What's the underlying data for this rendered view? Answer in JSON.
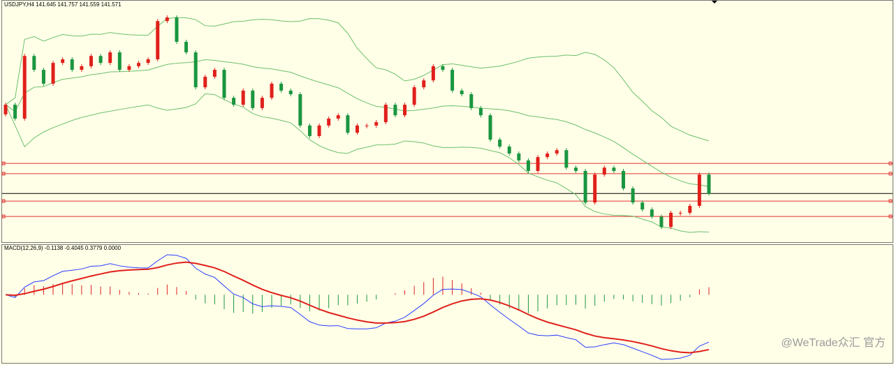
{
  "chart_data": {
    "type": "candlestick",
    "title": "USDJPY,H4  141.645 141.757 141.559 141.571",
    "macd_label": "MACD(12,26,9) -0.1138 -0.4045 0.3779 0.0000",
    "watermark": "@WeTrade众汇 官方",
    "ylim": [
      140,
      148
    ],
    "levels": [
      142.57,
      142.23,
      141.32,
      140.81
    ],
    "up_color": "#e0201b",
    "down_color": "#1a9640",
    "band_color": "#6cc06c",
    "open": [
      144.2,
      144.52,
      144.06,
      146.14,
      145.68,
      145.22,
      145.91,
      146.03,
      145.68,
      145.8,
      146.14,
      145.91,
      146.26,
      145.68,
      145.8,
      145.91,
      146.03,
      147.3,
      147.42,
      146.61,
      146.26,
      145.1,
      145.45,
      145.68,
      144.75,
      144.52,
      144.99,
      144.41,
      144.75,
      145.22,
      144.99,
      144.87,
      143.83,
      143.48,
      143.83,
      144.06,
      144.17,
      143.59,
      143.83,
      143.83,
      143.94,
      144.52,
      144.17,
      144.52,
      145.1,
      145.33,
      145.8,
      145.68,
      144.99,
      144.87,
      144.41,
      144.17,
      143.36,
      143.13,
      142.9,
      142.67,
      142.32,
      142.78,
      142.9,
      143.01,
      142.43,
      142.32,
      141.27,
      142.2,
      142.43,
      142.32,
      141.74,
      141.27,
      141.04,
      140.8,
      140.46,
      140.93,
      140.93,
      141.16,
      142.2
    ],
    "close": [
      144.52,
      144.06,
      146.14,
      145.68,
      145.22,
      145.91,
      146.03,
      145.68,
      145.8,
      146.14,
      145.91,
      146.26,
      145.68,
      145.8,
      145.91,
      146.03,
      147.3,
      147.42,
      146.61,
      146.26,
      145.1,
      145.45,
      145.68,
      144.75,
      144.52,
      144.99,
      144.41,
      144.75,
      145.22,
      144.99,
      144.87,
      143.83,
      143.48,
      143.83,
      144.06,
      144.17,
      143.59,
      143.83,
      143.83,
      143.94,
      144.52,
      144.17,
      144.52,
      145.1,
      145.33,
      145.8,
      145.68,
      144.99,
      144.87,
      144.41,
      144.17,
      143.36,
      143.13,
      142.9,
      142.67,
      142.32,
      142.78,
      142.9,
      143.01,
      142.43,
      142.32,
      141.27,
      142.2,
      142.43,
      142.32,
      141.74,
      141.27,
      141.04,
      140.8,
      140.46,
      140.93,
      140.93,
      141.16,
      142.2,
      141.57
    ]
  }
}
